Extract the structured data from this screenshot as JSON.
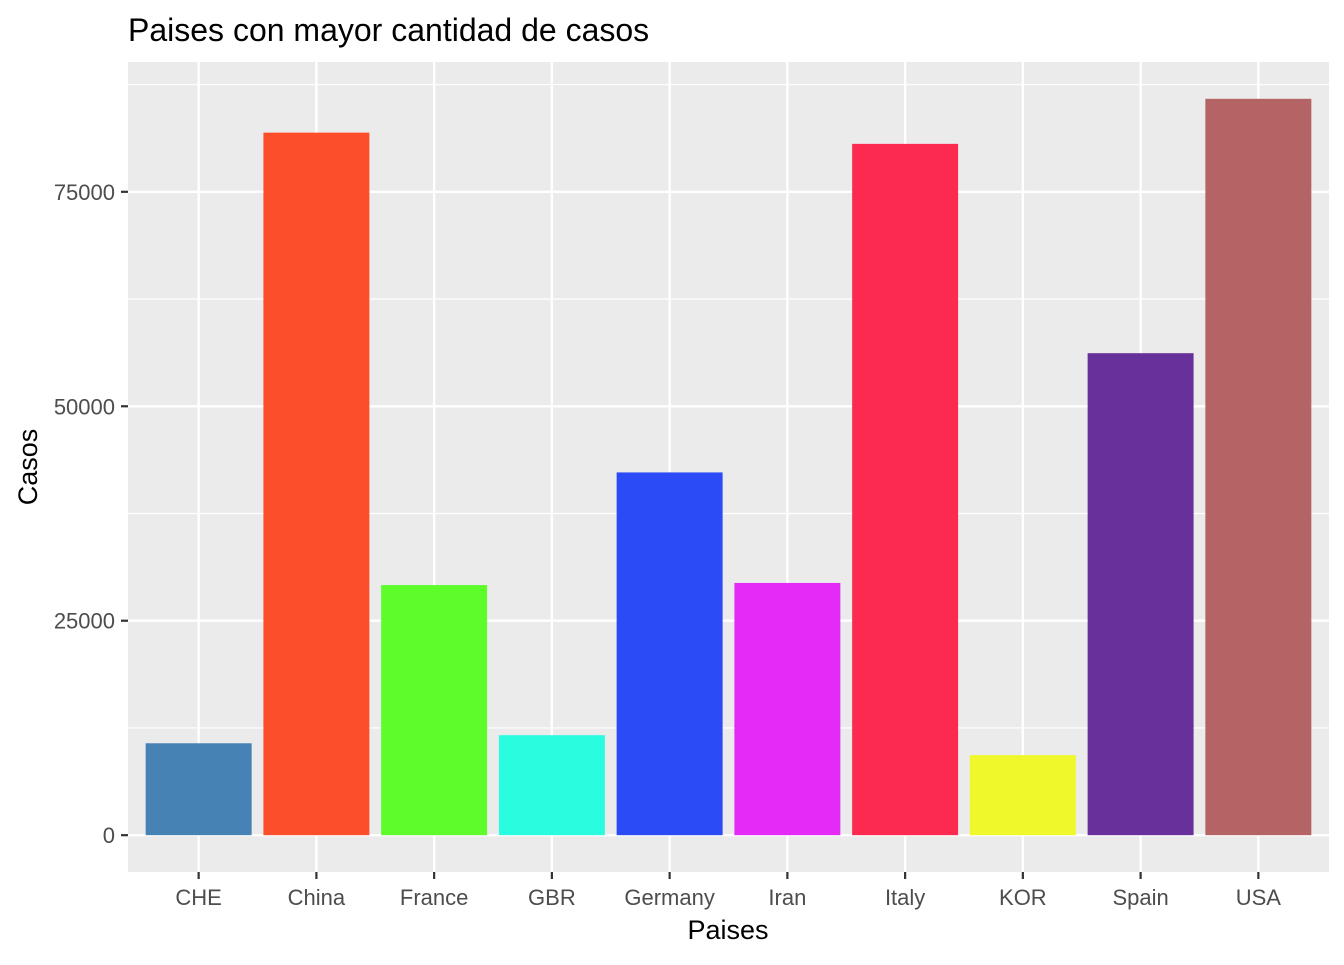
{
  "chart_data": {
    "type": "bar",
    "title": "Paises con mayor cantidad de casos",
    "xlabel": "Paises",
    "ylabel": "Casos",
    "categories": [
      "CHE",
      "China",
      "France",
      "GBR",
      "Germany",
      "Iran",
      "Italy",
      "KOR",
      "Spain",
      "USA"
    ],
    "values": [
      10714,
      81897,
      29155,
      11658,
      42288,
      29406,
      80589,
      9332,
      56188,
      85840
    ],
    "colors": [
      "#4682B4",
      "#FC4E2A",
      "#5DFC2A",
      "#2AFCE0",
      "#2A4BF6",
      "#E42AF6",
      "#FC2A50",
      "#EEF82A",
      "#68309A",
      "#B46464"
    ],
    "ylim": [
      -4292,
      90132
    ],
    "yticks": [
      0,
      25000,
      50000,
      75000
    ],
    "ytick_labels": [
      "0",
      "25000",
      "50000",
      "75000"
    ],
    "grid": true,
    "panel_background": "#EBEBEB",
    "grid_color": "#FFFFFF",
    "legend": "none"
  }
}
